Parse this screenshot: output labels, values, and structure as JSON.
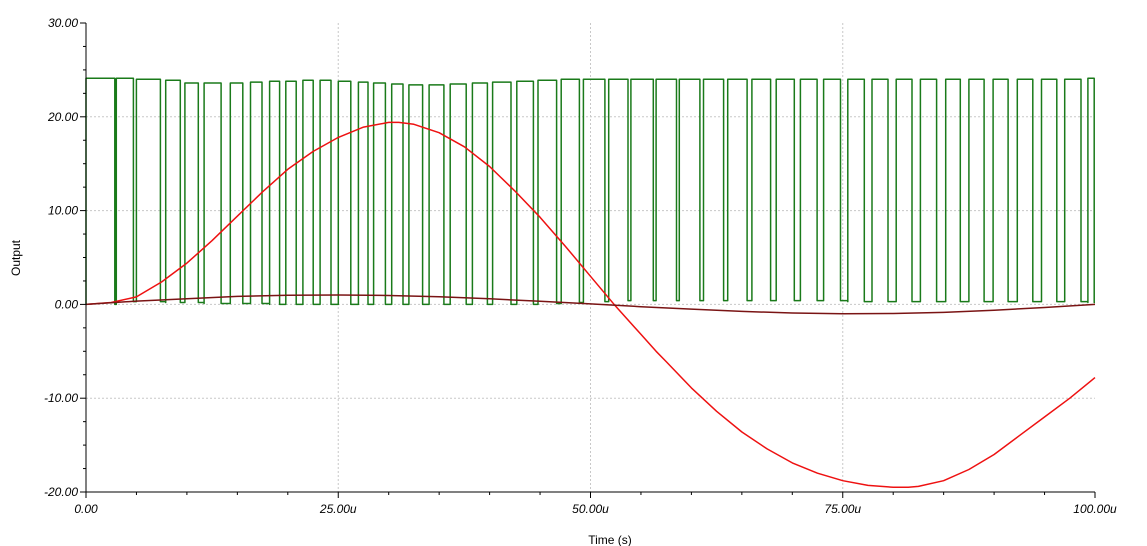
{
  "chart_data": {
    "type": "line",
    "title": "",
    "xlabel": "Time (s)",
    "ylabel": "Output",
    "xlim": [
      0,
      100
    ],
    "ylim": [
      -20,
      30
    ],
    "x_ticks": [
      0,
      25,
      50,
      75,
      100
    ],
    "x_tick_labels": [
      "0.00",
      "25.00u",
      "50.00u",
      "75.00u",
      "100.00u"
    ],
    "y_ticks": [
      30,
      20,
      10,
      0,
      -10,
      -20
    ],
    "y_tick_labels": [
      "30.00",
      "20.00",
      "10.00",
      "0.00",
      "-10.00",
      "-20.00"
    ],
    "grid": true,
    "legend": "none",
    "series": [
      {
        "color": "#1a7a1a",
        "style": "pwm",
        "x": [
          0,
          1,
          3,
          5,
          6,
          8,
          10,
          11,
          13,
          15,
          16,
          18,
          20,
          21,
          23,
          25,
          26,
          28,
          30,
          31,
          33,
          35,
          36,
          38,
          40,
          41,
          43,
          45,
          46,
          48,
          50,
          51,
          53,
          55,
          56,
          58,
          60,
          61,
          63,
          65,
          66,
          68,
          70,
          71,
          73,
          75,
          76,
          78,
          80,
          81,
          83,
          85,
          86,
          88,
          90,
          91,
          93,
          95,
          96,
          98,
          100
        ],
        "rise_times": [
          0,
          3,
          5,
          7.9,
          9.8,
          11.7,
          14.3,
          16.3,
          18.2,
          19.8,
          21.5,
          23.2,
          25,
          27,
          28.5,
          30.3,
          32,
          34,
          36.1,
          38.3,
          40.3,
          42.7,
          44.8,
          47.1,
          49.3,
          51.8,
          54,
          56.5,
          58.8,
          61.2,
          63.6,
          66,
          68.4,
          70.8,
          73.1,
          75.5,
          77.9,
          80.3,
          82.7,
          85.2,
          87.5,
          89.9,
          92.3,
          94.7,
          97,
          99.3
        ],
        "duty_cycles": [
          0.95,
          0.85,
          0.82,
          0.76,
          0.7,
          0.65,
          0.62,
          0.6,
          0.62,
          0.61,
          0.6,
          0.6,
          0.62,
          0.63,
          0.65,
          0.66,
          0.68,
          0.7,
          0.72,
          0.74,
          0.76,
          0.78,
          0.8,
          0.82,
          0.85,
          0.87,
          0.89,
          0.88,
          0.85,
          0.83,
          0.8,
          0.77,
          0.75,
          0.72,
          0.7,
          0.68,
          0.66,
          0.65,
          0.64,
          0.63,
          0.63,
          0.62,
          0.64,
          0.66,
          0.7,
          0.88
        ],
        "high_level": [
          24.1,
          24.1,
          24.0,
          23.9,
          23.6,
          23.6,
          23.6,
          23.7,
          23.8,
          23.8,
          23.9,
          23.9,
          23.8,
          23.7,
          23.6,
          23.5,
          23.4,
          23.4,
          23.5,
          23.6,
          23.7,
          23.8,
          23.9,
          24.0,
          24.0,
          24.0,
          24.0,
          24.0,
          24.0,
          24.0,
          24.0,
          24.0,
          24.0,
          24.0,
          24.0,
          24.0,
          24.0,
          24.0,
          24.0,
          24.0,
          24.0,
          24.0,
          24.0,
          24.0,
          24.0,
          24.1
        ],
        "low_level": [
          0.0,
          0.3,
          0.3,
          0.2,
          0.2,
          0.1,
          0.1,
          0.1,
          0.0,
          0.0,
          0.0,
          0.0,
          0.0,
          0.0,
          0.0,
          0.0,
          0.0,
          0.0,
          0.0,
          0.0,
          0.0,
          0.0,
          0.1,
          0.2,
          0.3,
          0.4,
          0.4,
          0.4,
          0.4,
          0.4,
          0.4,
          0.4,
          0.4,
          0.4,
          0.4,
          0.3,
          0.3,
          0.3,
          0.3,
          0.3,
          0.3,
          0.3,
          0.3,
          0.3,
          0.3,
          0.2
        ]
      },
      {
        "color": "#ee1111",
        "style": "line",
        "x": [
          0,
          2.5,
          5,
          7.5,
          10,
          12.5,
          15,
          17.5,
          20,
          22.5,
          25,
          27.5,
          30,
          31,
          32.5,
          35,
          37.5,
          40,
          42.5,
          45,
          47.5,
          50,
          52.5,
          55,
          56.5,
          57.5,
          60,
          62.5,
          65,
          67.5,
          70,
          72.5,
          75,
          77.5,
          80,
          81.5,
          82.5,
          85,
          87.5,
          90,
          92.5,
          95,
          97.5,
          100
        ],
        "y": [
          0.0,
          0.2,
          0.8,
          2.4,
          4.4,
          6.8,
          9.4,
          12.0,
          14.4,
          16.3,
          17.8,
          18.9,
          19.4,
          19.4,
          19.2,
          18.3,
          16.8,
          14.7,
          12.1,
          9.3,
          6.2,
          3.0,
          -0.2,
          -3.2,
          -5.0,
          -6.1,
          -8.9,
          -11.4,
          -13.6,
          -15.4,
          -16.9,
          -18.0,
          -18.8,
          -19.3,
          -19.5,
          -19.5,
          -19.4,
          -18.8,
          -17.6,
          -16.0,
          -14.0,
          -12.0,
          -10.0,
          -7.8
        ]
      },
      {
        "color": "#7a1414",
        "style": "line",
        "x": [
          0,
          5,
          10,
          15,
          20,
          25,
          30,
          35,
          40,
          45,
          50,
          55,
          60,
          65,
          70,
          75,
          80,
          85,
          90,
          95,
          100
        ],
        "y": [
          0.0,
          0.35,
          0.6,
          0.85,
          0.97,
          1.0,
          0.95,
          0.82,
          0.6,
          0.33,
          0.05,
          -0.25,
          -0.5,
          -0.75,
          -0.92,
          -1.0,
          -0.97,
          -0.85,
          -0.62,
          -0.33,
          0.0
        ]
      }
    ]
  }
}
